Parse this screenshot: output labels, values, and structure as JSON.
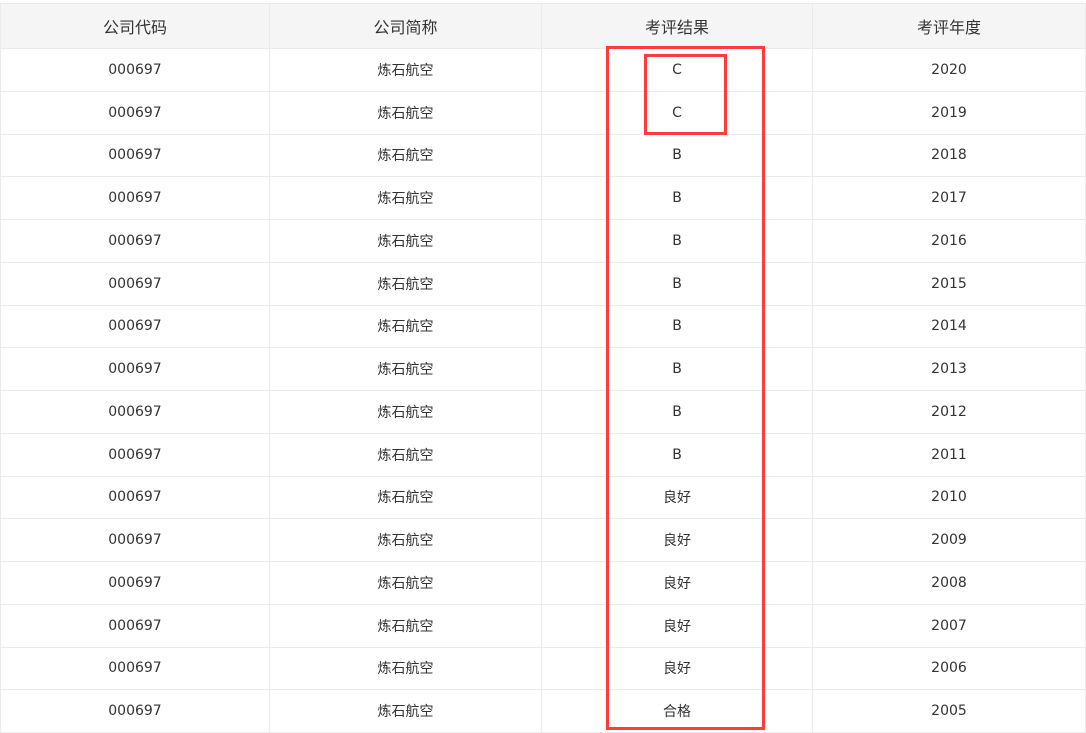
{
  "headers": [
    "公司代码",
    "公司简称",
    "考评结果",
    "考评年度"
  ],
  "rows": [
    [
      "000697",
      "炼石航空",
      "C",
      "2020"
    ],
    [
      "000697",
      "炼石航空",
      "C",
      "2019"
    ],
    [
      "000697",
      "炼石航空",
      "B",
      "2018"
    ],
    [
      "000697",
      "炼石航空",
      "B",
      "2017"
    ],
    [
      "000697",
      "炼石航空",
      "B",
      "2016"
    ],
    [
      "000697",
      "炼石航空",
      "B",
      "2015"
    ],
    [
      "000697",
      "炼石航空",
      "B",
      "2014"
    ],
    [
      "000697",
      "炼石航空",
      "B",
      "2013"
    ],
    [
      "000697",
      "炼石航空",
      "B",
      "2012"
    ],
    [
      "000697",
      "炼石航空",
      "B",
      "2011"
    ],
    [
      "000697",
      "炼石航空",
      "良好",
      "2010"
    ],
    [
      "000697",
      "炼石航空",
      "良好",
      "2009"
    ],
    [
      "000697",
      "炼石航空",
      "良好",
      "2008"
    ],
    [
      "000697",
      "炼石航空",
      "良好",
      "2007"
    ],
    [
      "000697",
      "炼石航空",
      "良好",
      "2006"
    ],
    [
      "000697",
      "炼石航空",
      "合格",
      "2005"
    ]
  ],
  "highlight_color": "#ff3b3b"
}
